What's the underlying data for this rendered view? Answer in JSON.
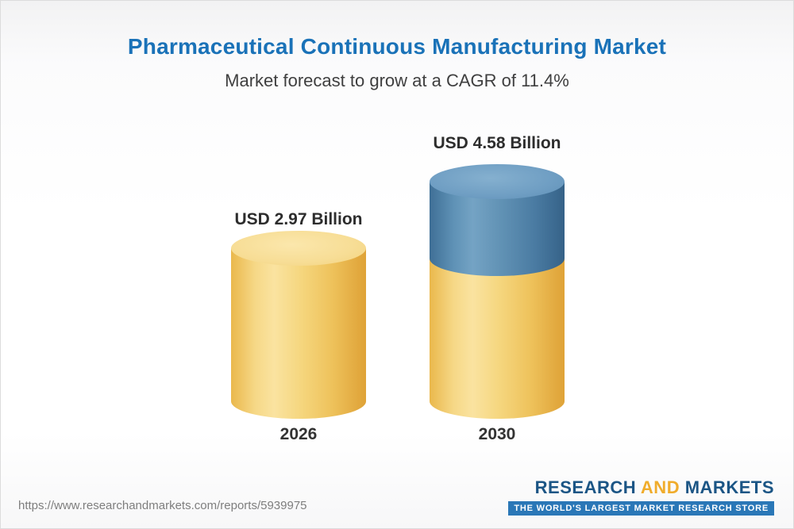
{
  "header": {
    "title": "Pharmaceutical Continuous Manufacturing Market",
    "subtitle": "Market forecast to grow at a CAGR of 11.4%"
  },
  "chart_data": {
    "type": "bar",
    "title": "Pharmaceutical Continuous Manufacturing Market",
    "subtitle": "Market forecast to grow at a CAGR of 11.4%",
    "cagr_percent": 11.4,
    "unit": "USD Billion",
    "categories": [
      "2026",
      "2030"
    ],
    "values": [
      2.97,
      4.58
    ],
    "bar_labels": [
      "USD 2.97 Billion",
      "USD 4.58 Billion"
    ],
    "bar_styles": [
      "gold cylinder",
      "gold cylinder with blue top segment"
    ],
    "legend": "none",
    "grid": false,
    "colors": {
      "gold": "#f2c75e",
      "blue": "#4a7ba2",
      "title_blue": "#1a72b8"
    }
  },
  "footer": {
    "url": "https://www.researchandmarkets.com/reports/5939975",
    "brand": {
      "research": "RESEARCH",
      "and": "AND",
      "markets": "MARKETS",
      "tagline": "THE WORLD'S LARGEST MARKET RESEARCH STORE"
    }
  }
}
